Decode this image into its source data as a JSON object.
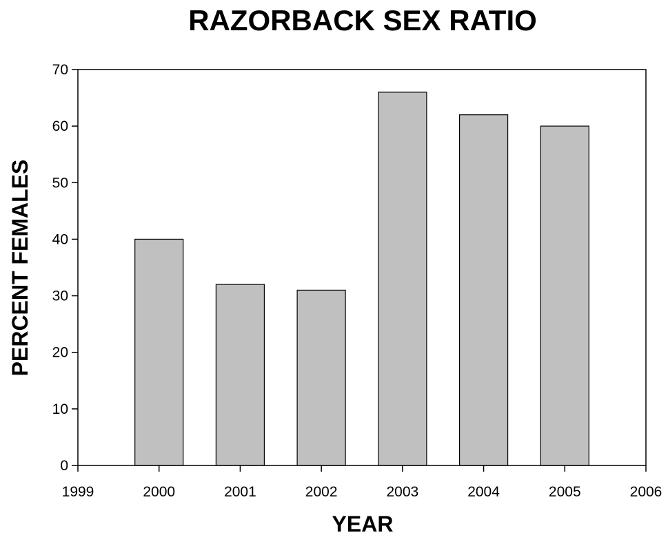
{
  "chart_data": {
    "type": "bar",
    "title": "RAZORBACK SEX RATIO",
    "xlabel": "YEAR",
    "ylabel": "PERCENT FEMALES",
    "x_ticks": [
      "1999",
      "2000",
      "2001",
      "2002",
      "2003",
      "2004",
      "2005",
      "2006"
    ],
    "xlim": [
      1999,
      2006
    ],
    "y_ticks": [
      "0",
      "10",
      "20",
      "30",
      "40",
      "50",
      "60",
      "70"
    ],
    "ylim": [
      0,
      70
    ],
    "categories": [
      2000,
      2001,
      2002,
      2003,
      2004,
      2005
    ],
    "values": [
      40,
      32,
      31,
      66,
      62,
      60
    ],
    "bar_color": "#c0c0c0",
    "edge_color": "#000000",
    "grid": false,
    "legend": "none"
  }
}
